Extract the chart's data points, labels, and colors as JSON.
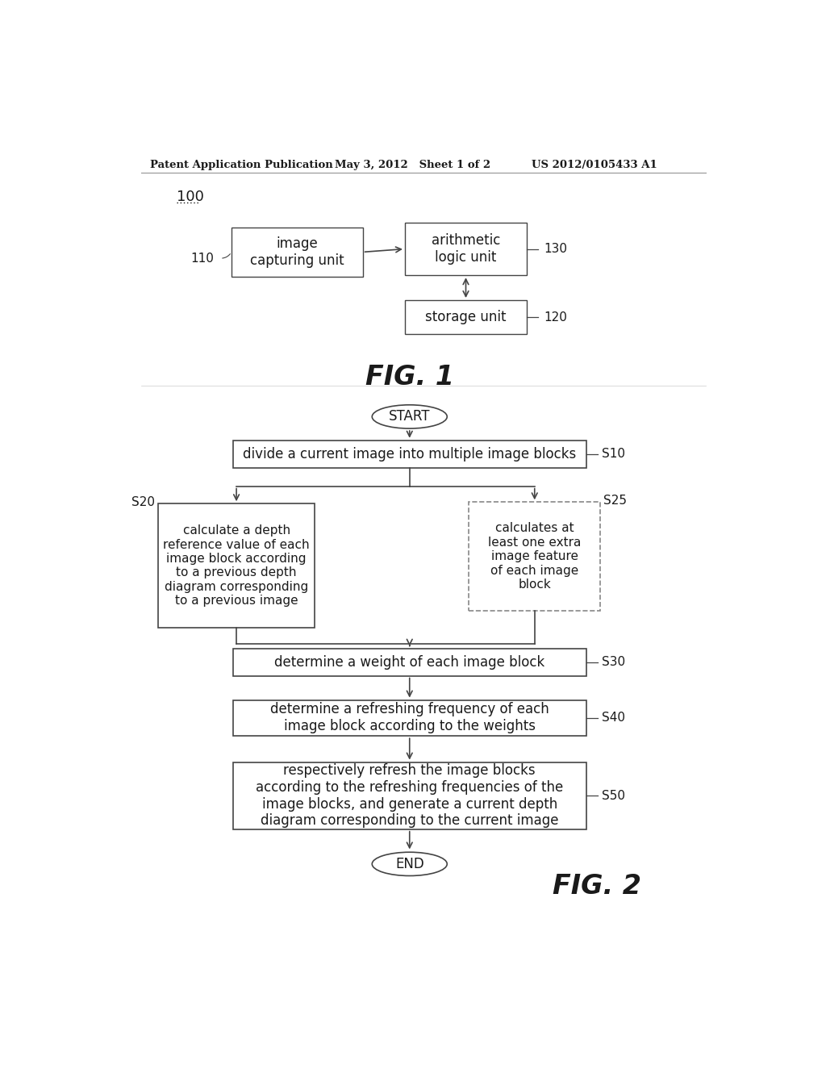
{
  "bg_color": "#ffffff",
  "header_left": "Patent Application Publication",
  "header_mid": "May 3, 2012   Sheet 1 of 2",
  "header_right": "US 2012/0105433 A1",
  "fig1_label": "100",
  "fig1_caption": "FIG. 1",
  "fig2_caption": "FIG. 2",
  "text_color": "#1a1a1a",
  "box_edge_color": "#444444",
  "arrow_color": "#444444",
  "dashed_edge_color": "#888888",
  "fig1": {
    "image_capture_label": "110",
    "image_capture_text": "image\ncapturing unit",
    "arithmetic_label": "130",
    "arithmetic_text": "arithmetic\nlogic unit",
    "storage_label": "120",
    "storage_text": "storage unit"
  },
  "fig2": {
    "start_text": "START",
    "end_text": "END",
    "s10_label": "S10",
    "s10_text": "divide a current image into multiple image blocks",
    "s20_label": "S20",
    "s20_text": "calculate a depth\nreference value of each\nimage block according\nto a previous depth\ndiagram corresponding\nto a previous image",
    "s25_label": "S25",
    "s25_text": "calculates at\nleast one extra\nimage feature\nof each image\nblock",
    "s30_label": "S30",
    "s30_text": "determine a weight of each image block",
    "s40_label": "S40",
    "s40_text": "determine a refreshing frequency of each\nimage block according to the weights",
    "s50_label": "S50",
    "s50_text": "respectively refresh the image blocks\naccording to the refreshing frequencies of the\nimage blocks, and generate a current depth\ndiagram corresponding to the current image"
  }
}
